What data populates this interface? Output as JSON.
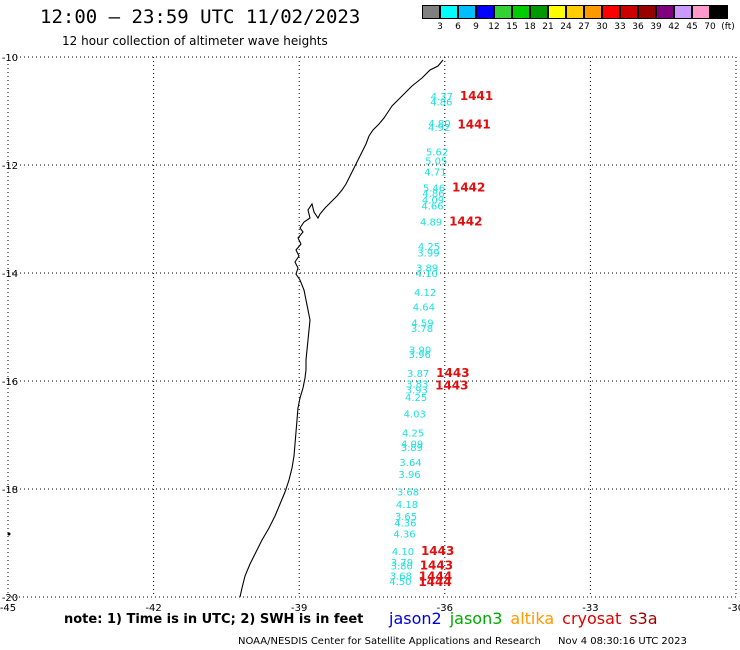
{
  "title": "12:00 — 23:59 UTC 11/02/2023",
  "subtitle": "12 hour collection of altimeter wave heights",
  "color_scale": {
    "colors": [
      "#808080",
      "#00ffff",
      "#00bfff",
      "#0000ff",
      "#33d133",
      "#00cc00",
      "#009900",
      "#ffff00",
      "#ffcc00",
      "#ff9900",
      "#ff0000",
      "#cc0000",
      "#990000",
      "#800080",
      "#cc99ff",
      "#ff99cc",
      "#000000"
    ],
    "labels": [
      "3",
      "6",
      "9",
      "12",
      "15",
      "18",
      "21",
      "24",
      "27",
      "30",
      "33",
      "36",
      "39",
      "42",
      "45",
      "70",
      "(ft)"
    ]
  },
  "axes": {
    "lat_labels": [
      "-10",
      "-12",
      "-14",
      "-16",
      "-18",
      "-20"
    ],
    "lon_labels": [
      "-45",
      "-42",
      "-39",
      "-36",
      "-33",
      "-30"
    ]
  },
  "wave_heights": [
    {
      "v": "4.37",
      "lat": -10.72
    },
    {
      "v": "4.86",
      "lat": -10.82
    },
    {
      "v": "4.80",
      "lat": -11.22
    },
    {
      "v": "4.92",
      "lat": -11.3
    },
    {
      "v": "5.62",
      "lat": -11.75
    },
    {
      "v": "5.05",
      "lat": -11.92
    },
    {
      "v": "4.71",
      "lat": -12.12
    },
    {
      "v": "5.46",
      "lat": -12.42
    },
    {
      "v": "4.86",
      "lat": -12.52
    },
    {
      "v": "4.09",
      "lat": -12.64
    },
    {
      "v": "4.66",
      "lat": -12.75
    },
    {
      "v": "4.89",
      "lat": -13.05
    },
    {
      "v": "4.25",
      "lat": -13.5
    },
    {
      "v": "3.99",
      "lat": -13.62
    },
    {
      "v": "3.89",
      "lat": -13.9
    },
    {
      "v": "4.10",
      "lat": -14.0
    },
    {
      "v": "4.12",
      "lat": -14.35
    },
    {
      "v": "4.64",
      "lat": -14.62
    },
    {
      "v": "4.59",
      "lat": -14.92
    },
    {
      "v": "3.78",
      "lat": -15.02
    },
    {
      "v": "3.90",
      "lat": -15.42
    },
    {
      "v": "3.96",
      "lat": -15.5
    },
    {
      "v": "3.87",
      "lat": -15.85
    },
    {
      "v": "3.83",
      "lat": -16.05
    },
    {
      "v": "3.93",
      "lat": -16.16
    },
    {
      "v": "4.25",
      "lat": -16.3
    },
    {
      "v": "4.03",
      "lat": -16.6
    },
    {
      "v": "4.25",
      "lat": -16.95
    },
    {
      "v": "4.09",
      "lat": -17.16
    },
    {
      "v": "3.89",
      "lat": -17.22
    },
    {
      "v": "3.64",
      "lat": -17.5
    },
    {
      "v": "3.96",
      "lat": -17.72
    },
    {
      "v": "3.68",
      "lat": -18.05
    },
    {
      "v": "4.18",
      "lat": -18.28
    },
    {
      "v": "3.65",
      "lat": -18.5
    },
    {
      "v": "4.36",
      "lat": -18.62
    },
    {
      "v": "4.36",
      "lat": -18.82
    },
    {
      "v": "4.10",
      "lat": -19.15
    },
    {
      "v": "3.79",
      "lat": -19.35
    },
    {
      "v": "3.80",
      "lat": -19.42
    },
    {
      "v": "3.68",
      "lat": -19.6
    },
    {
      "v": "4.50",
      "lat": -19.7
    }
  ],
  "pass_labels": [
    {
      "v": "1441",
      "lat": -10.72
    },
    {
      "v": "1441",
      "lat": -11.25
    },
    {
      "v": "1442",
      "lat": -12.42
    },
    {
      "v": "1442",
      "lat": -13.05
    },
    {
      "v": "1443",
      "lat": -15.85
    },
    {
      "v": "1443",
      "lat": -16.08
    },
    {
      "v": "1443",
      "lat": -19.15
    },
    {
      "v": "1443",
      "lat": -19.42
    },
    {
      "v": "1444",
      "lat": -19.62
    },
    {
      "v": "1444",
      "lat": -19.72
    }
  ],
  "note": "note: 1) Time is in UTC; 2) SWH is in feet",
  "legend": [
    {
      "name": "jason2",
      "color": "#0000dd"
    },
    {
      "name": "jason3",
      "color": "#00aa00"
    },
    {
      "name": "altika",
      "color": "#ff9900"
    },
    {
      "name": "cryosat",
      "color": "#e00000"
    },
    {
      "name": "s3a",
      "color": "#990000"
    }
  ],
  "footer": {
    "credit": "NOAA/NESDIS Center for Satellite Applications and Research",
    "timestamp": "Nov  4 08:30:16 UTC 2023"
  }
}
